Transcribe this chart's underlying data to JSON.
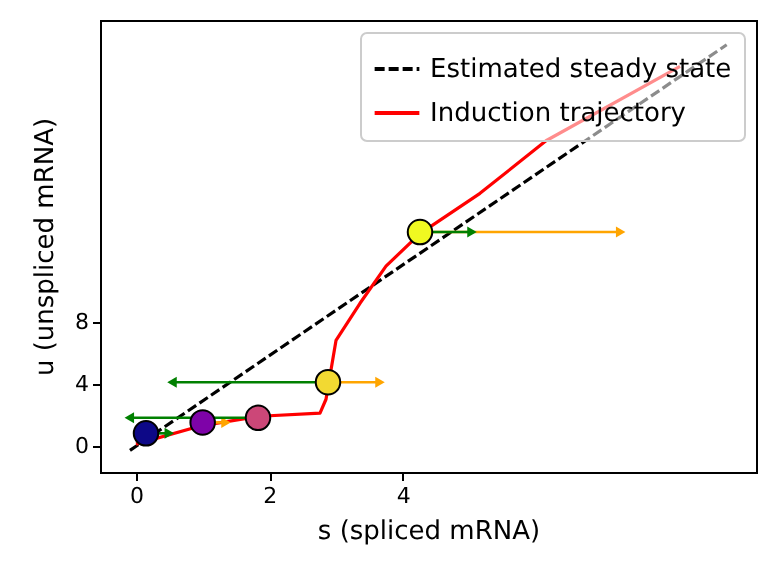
{
  "chart_data": {
    "type": "scatter",
    "xlabel": "s (spliced mRNA)",
    "ylabel": "u (unspliced mRNA)",
    "xlim": [
      -0.54,
      9.3
    ],
    "ylim": [
      -1.7,
      27.5
    ],
    "xticks": [
      0,
      2,
      4
    ],
    "yticks": [
      0,
      4,
      8
    ],
    "grid": false,
    "legend": "top right",
    "series": [
      {
        "name": "Estimated steady state",
        "type": "line",
        "line_style": "dashed",
        "color": "#000000",
        "x": [
          -0.09,
          8.86
        ],
        "values": [
          -0.3,
          25.9
        ]
      },
      {
        "name": "Induction trajectory",
        "type": "line",
        "line_style": "solid",
        "color": "#ff0000",
        "x": [
          0,
          0.99,
          1.86,
          2.76,
          2.85,
          3.0,
          3.36,
          3.75,
          4.26,
          5.16,
          6.15,
          8.16
        ],
        "values": [
          0.1,
          1.3,
          1.9,
          2.1,
          3.0,
          6.8,
          9.2,
          11.6,
          13.7,
          16.3,
          19.7,
          24.5
        ]
      },
      {
        "type": "line",
        "color": "#008000",
        "x": [
          0.15,
          0.5
        ],
        "values": [
          0.8,
          0.8
        ]
      },
      {
        "type": "line",
        "color": "#ffa500",
        "x": [
          1.0,
          1.35
        ],
        "values": [
          1.5,
          1.5
        ]
      },
      {
        "type": "line",
        "color": "#008000",
        "x": [
          1.83,
          -0.1
        ],
        "values": [
          1.8,
          1.8
        ]
      },
      {
        "type": "line",
        "color": "#008000",
        "x": [
          2.88,
          0.54
        ],
        "values": [
          4.1,
          4.1
        ]
      },
      {
        "type": "line",
        "color": "#ffa500",
        "x": [
          2.88,
          3.66
        ],
        "values": [
          4.1,
          4.1
        ]
      },
      {
        "type": "line",
        "color": "#ffa500",
        "x": [
          4.26,
          7.27
        ],
        "values": [
          13.8,
          13.8
        ]
      },
      {
        "type": "line",
        "color": "#008000",
        "x": [
          4.26,
          5.04
        ],
        "values": [
          13.8,
          13.8
        ]
      },
      {
        "type": "scatter",
        "marker": "circle",
        "x": [
          0.15,
          1.0,
          1.83,
          2.88,
          4.26
        ],
        "values": [
          0.8,
          1.5,
          1.8,
          4.1,
          13.8
        ],
        "colors": [
          "#0d0887",
          "#7e03a8",
          "#cc4778",
          "#f2d932",
          "#f0f921"
        ]
      }
    ]
  }
}
